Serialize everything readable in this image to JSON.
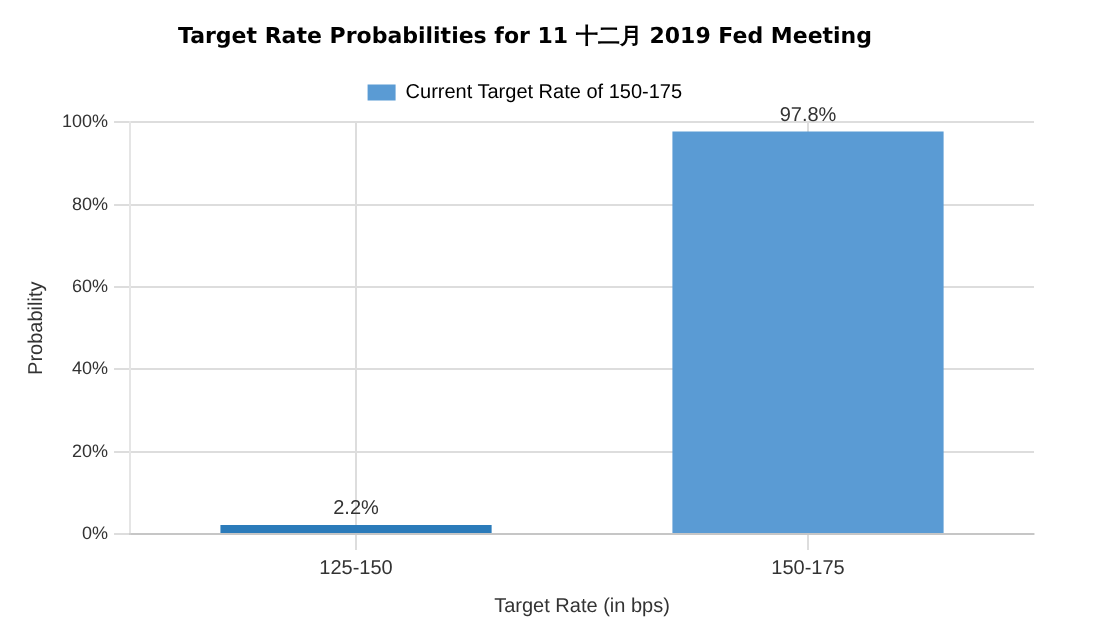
{
  "chart_data": {
    "type": "bar",
    "title": "Target Rate Probabilities for 11 十二月 2019 Fed Meeting",
    "xlabel": "Target Rate (in bps)",
    "ylabel": "Probability",
    "categories": [
      "125-150",
      "150-175"
    ],
    "series": [
      {
        "name": "Current Target Rate of 150-175",
        "color": "#5a9bd4",
        "colors": [
          "#2b7bba",
          "#5a9bd4"
        ],
        "values": [
          2.2,
          97.8
        ],
        "value_labels": [
          "2.2%",
          "97.8%"
        ]
      }
    ],
    "ylim": [
      0,
      100
    ],
    "yticks": [
      {
        "value": 0,
        "label": "0%"
      },
      {
        "value": 20,
        "label": "20%"
      },
      {
        "value": 40,
        "label": "40%"
      },
      {
        "value": 60,
        "label": "60%"
      },
      {
        "value": 80,
        "label": "80%"
      },
      {
        "value": 100,
        "label": "100%"
      }
    ],
    "grid": true,
    "legend": "top"
  }
}
